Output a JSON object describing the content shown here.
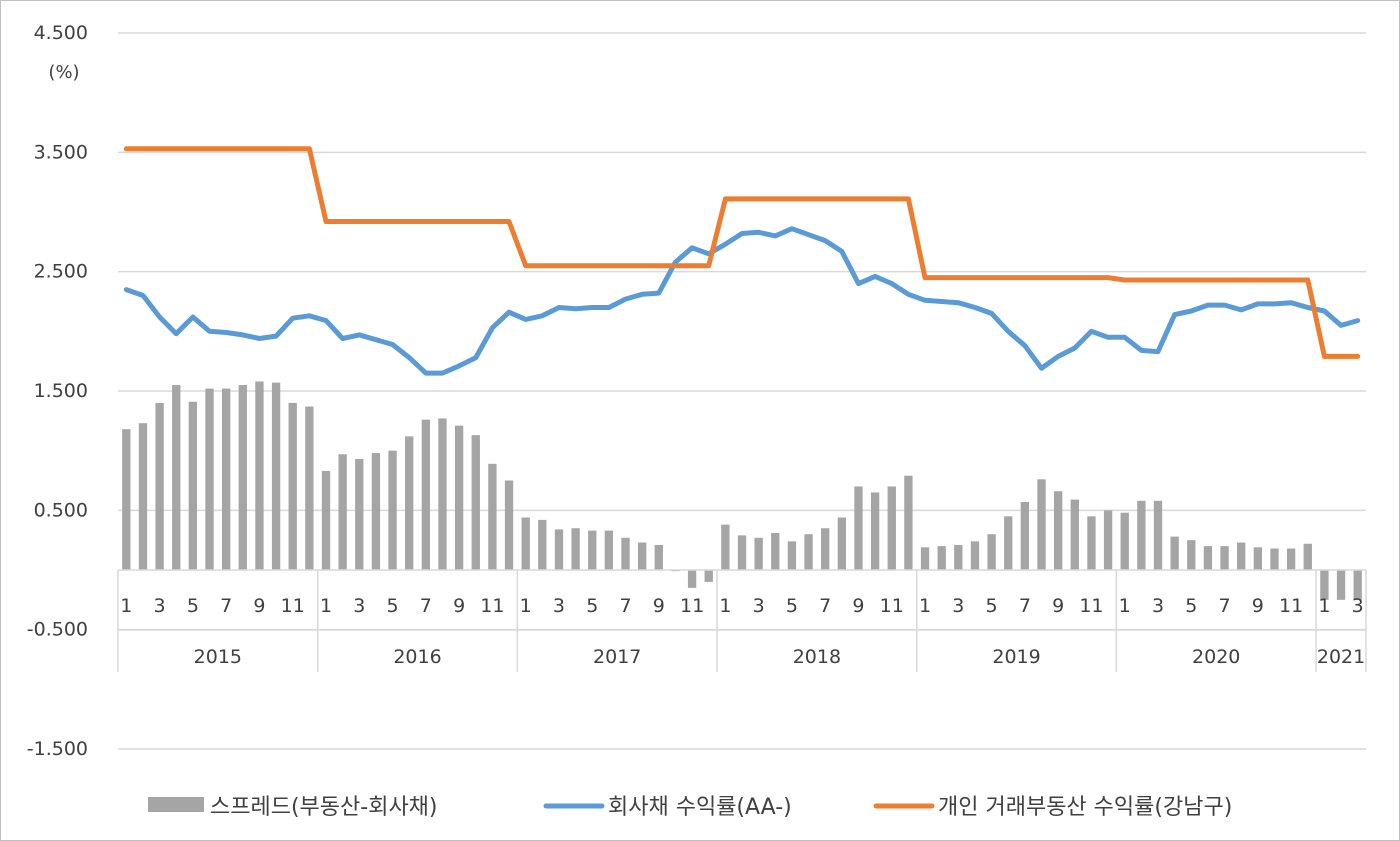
{
  "chart_data": {
    "type": "bar",
    "title": "",
    "ylabel": "(%)",
    "xlabel": "",
    "ylim": [
      -1.5,
      4.5
    ],
    "yticks": [
      4.5,
      3.5,
      2.5,
      1.5,
      0.5,
      -0.5,
      -1.5
    ],
    "ytick_labels": [
      "4.500",
      "3.500",
      "2.500",
      "1.500",
      "0.500",
      "-0.500",
      "-1.500"
    ],
    "grid": true,
    "legend_position": "bottom",
    "years": [
      {
        "label": "2015",
        "months": 12
      },
      {
        "label": "2016",
        "months": 12
      },
      {
        "label": "2017",
        "months": 12
      },
      {
        "label": "2018",
        "months": 12
      },
      {
        "label": "2019",
        "months": 12
      },
      {
        "label": "2020",
        "months": 12
      },
      {
        "label": "2021",
        "months": 3
      }
    ],
    "month_labels": [
      "1",
      "3",
      "5",
      "7",
      "9",
      "11",
      "1",
      "3",
      "5",
      "7",
      "9",
      "11",
      "1",
      "3",
      "5",
      "7",
      "9",
      "11",
      "1",
      "3",
      "5",
      "7",
      "9",
      "11",
      "1",
      "3",
      "5",
      "7",
      "9",
      "11",
      "1",
      "3",
      "5",
      "7",
      "9",
      "11",
      "1",
      "3"
    ],
    "series": [
      {
        "name": "스프레드(부동산-회사채)",
        "kind": "bar",
        "color": "#a5a5a5",
        "values": [
          1.18,
          1.23,
          1.4,
          1.55,
          1.41,
          1.52,
          1.52,
          1.55,
          1.58,
          1.57,
          1.4,
          1.37,
          0.83,
          0.97,
          0.93,
          0.98,
          1.0,
          1.12,
          1.26,
          1.27,
          1.21,
          1.13,
          0.89,
          0.75,
          0.44,
          0.42,
          0.34,
          0.35,
          0.33,
          0.33,
          0.27,
          0.23,
          0.21,
          -0.01,
          -0.15,
          -0.1,
          0.38,
          0.29,
          0.27,
          0.31,
          0.24,
          0.3,
          0.35,
          0.44,
          0.7,
          0.65,
          0.7,
          0.79,
          0.19,
          0.2,
          0.21,
          0.24,
          0.3,
          0.45,
          0.57,
          0.76,
          0.66,
          0.59,
          0.45,
          0.5,
          0.48,
          0.58,
          0.58,
          0.28,
          0.25,
          0.2,
          0.2,
          0.23,
          0.19,
          0.18,
          0.18,
          0.22,
          -0.25,
          -0.25,
          -0.25
        ]
      },
      {
        "name": "회사채 수익률(AA-)",
        "kind": "line",
        "color": "#5b9bd5",
        "values": [
          2.35,
          2.3,
          2.12,
          1.98,
          2.12,
          2.0,
          1.99,
          1.97,
          1.94,
          1.96,
          2.11,
          2.13,
          2.09,
          1.94,
          1.97,
          1.93,
          1.89,
          1.78,
          1.65,
          1.65,
          1.71,
          1.78,
          2.03,
          2.16,
          2.1,
          2.13,
          2.2,
          2.19,
          2.2,
          2.2,
          2.27,
          2.31,
          2.32,
          2.58,
          2.7,
          2.65,
          2.73,
          2.82,
          2.83,
          2.8,
          2.86,
          2.81,
          2.76,
          2.67,
          2.4,
          2.46,
          2.4,
          2.31,
          2.26,
          2.25,
          2.24,
          2.2,
          2.15,
          2.0,
          1.88,
          1.69,
          1.79,
          1.86,
          2.0,
          1.95,
          1.95,
          1.84,
          1.83,
          2.14,
          2.17,
          2.22,
          2.22,
          2.18,
          2.23,
          2.23,
          2.24,
          2.2,
          2.17,
          2.05,
          2.09
        ]
      },
      {
        "name": "개인 거래부동산 수익률(강남구)",
        "kind": "line",
        "color": "#ed7d31",
        "values": [
          3.53,
          3.53,
          3.53,
          3.53,
          3.53,
          3.53,
          3.53,
          3.53,
          3.53,
          3.53,
          3.53,
          3.53,
          2.92,
          2.92,
          2.92,
          2.92,
          2.92,
          2.92,
          2.92,
          2.92,
          2.92,
          2.92,
          2.92,
          2.92,
          2.55,
          2.55,
          2.55,
          2.55,
          2.55,
          2.55,
          2.55,
          2.55,
          2.55,
          2.55,
          2.55,
          2.55,
          3.11,
          3.11,
          3.11,
          3.11,
          3.11,
          3.11,
          3.11,
          3.11,
          3.11,
          3.11,
          3.11,
          3.11,
          2.45,
          2.45,
          2.45,
          2.45,
          2.45,
          2.45,
          2.45,
          2.45,
          2.45,
          2.45,
          2.45,
          2.45,
          2.43,
          2.43,
          2.43,
          2.43,
          2.43,
          2.43,
          2.43,
          2.43,
          2.43,
          2.43,
          2.43,
          2.43,
          1.79,
          1.79,
          1.79
        ]
      }
    ]
  }
}
